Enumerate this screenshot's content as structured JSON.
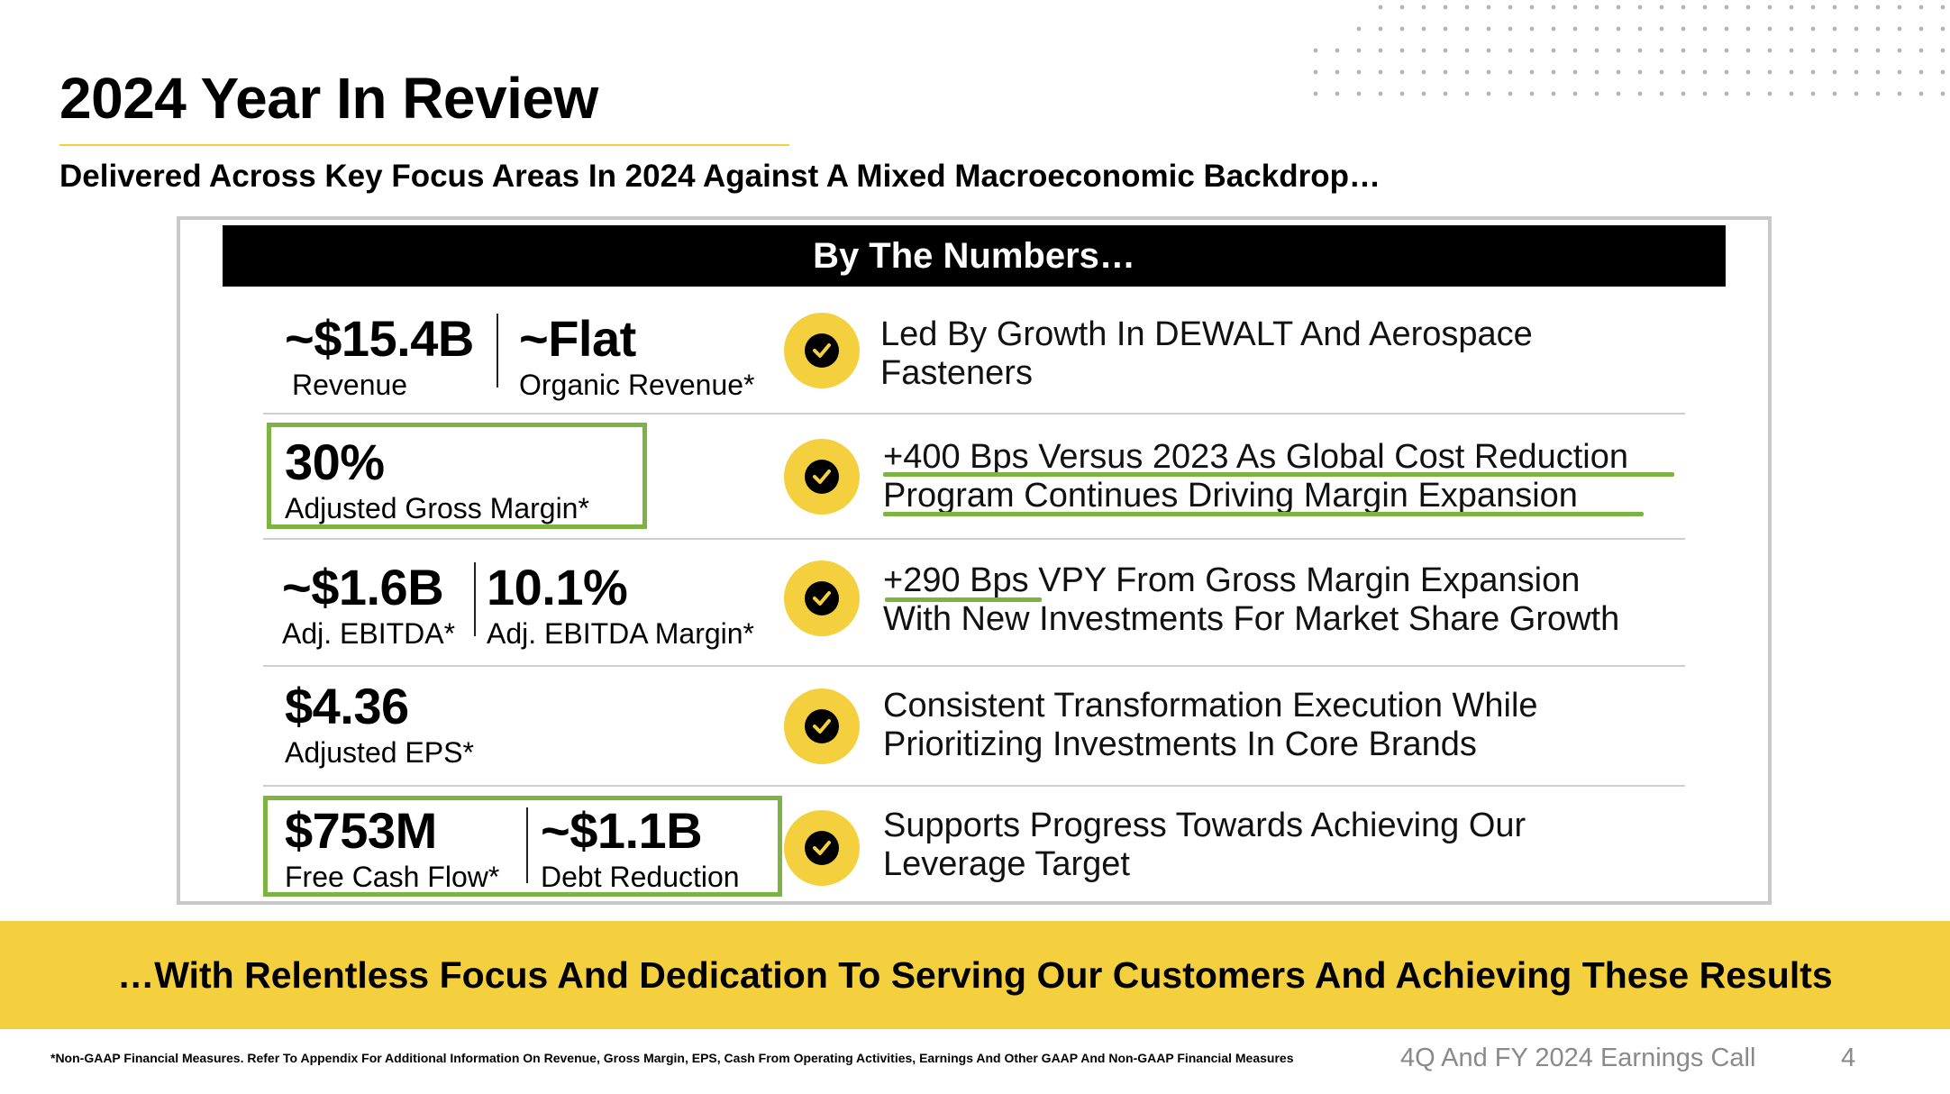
{
  "header": {
    "title": "2024 Year In Review",
    "subtitle": "Delivered Across Key Focus Areas In 2024 Against A Mixed Macroeconomic Backdrop…"
  },
  "panel": {
    "heading": "By The Numbers…",
    "rows": [
      {
        "metrics": [
          {
            "value": "~$15.4B",
            "label": "Revenue"
          },
          {
            "value": "~Flat",
            "label": "Organic Revenue*"
          }
        ],
        "description": [
          "Led By Growth In DEWALT And Aerospace",
          "Fasteners"
        ]
      },
      {
        "metrics": [
          {
            "value": "30%",
            "label": "Adjusted Gross Margin*"
          }
        ],
        "description": [
          "+400 Bps Versus 2023 As Global Cost Reduction",
          "Program Continues Driving Margin Expansion"
        ]
      },
      {
        "metrics": [
          {
            "value": "~$1.6B",
            "label": "Adj. EBITDA*"
          },
          {
            "value": "10.1%",
            "label": "Adj. EBITDA Margin*"
          }
        ],
        "description": [
          "+290 Bps VPY From Gross Margin Expansion",
          "With New Investments For Market Share Growth"
        ]
      },
      {
        "metrics": [
          {
            "value": "$4.36",
            "label": "Adjusted EPS*"
          }
        ],
        "description": [
          "Consistent Transformation Execution While",
          "Prioritizing Investments In Core Brands"
        ]
      },
      {
        "metrics": [
          {
            "value": "$753M",
            "label": "Free Cash Flow*"
          },
          {
            "value": "~$1.1B",
            "label": "Debt Reduction"
          }
        ],
        "description": [
          "Supports Progress Towards Achieving Our",
          "Leverage Target"
        ]
      }
    ]
  },
  "banner": "…With Relentless Focus And Dedication To Serving Our Customers And Achieving These Results",
  "footer": {
    "note": "*Non-GAAP Financial Measures. Refer To Appendix For Additional Information On Revenue, Gross Margin, EPS, Cash From Operating Activities, Earnings And Other GAAP And Non-GAAP Financial Measures",
    "event": "4Q And FY 2024 Earnings Call",
    "page": "4"
  },
  "colors": {
    "accent_yellow": "#f4d03f",
    "highlight_green": "#7cb342",
    "heading_bar": "#000000"
  },
  "icons": [
    "check-circle-icon",
    "dot-pattern-decoration"
  ]
}
